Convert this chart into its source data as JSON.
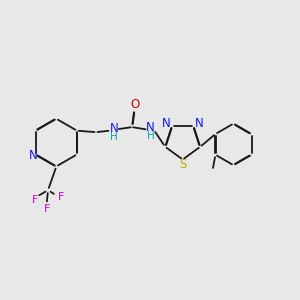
{
  "background_color": "#e8e8e8",
  "colors": {
    "N": "#1414ff",
    "S": "#c8a800",
    "O": "#cc0000",
    "F": "#cc00cc",
    "C": "#1a1a1a",
    "NH": "#00aaaa",
    "bond": "#1a1a1a"
  },
  "fig_width": 3.0,
  "fig_height": 3.0,
  "dpi": 100,
  "bond_lw": 1.3,
  "dbl_off": 0.013,
  "dbl_trim": 0.012
}
